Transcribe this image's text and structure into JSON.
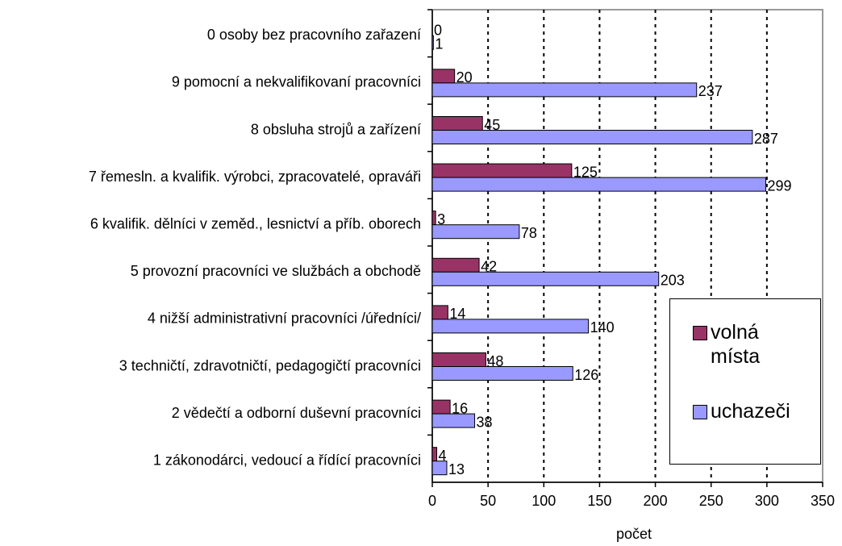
{
  "chart_data": {
    "type": "bar",
    "orientation": "horizontal",
    "categories": [
      "0 osoby bez pracovního zařazení",
      "9 pomocní a nekvalifikovaní pracovníci",
      "8 obsluha strojů  a zařízení",
      "7 řemesln. a kvalifik.  výrobci, zpracovatelé, opraváři",
      "6 kvalifik. dělníci v zeměd., lesnictví a příb. oborech",
      "5 provozní pracovníci ve službách a obchodě",
      "4 nižší administrativní pracovníci /úředníci/",
      "3 techničtí, zdravotničtí, pedagogičtí pracovníci",
      "2 vědečtí a odborní duševní pracovníci",
      "1 zákonodárci, vedoucí a řídící pracovníci"
    ],
    "series": [
      {
        "name": "volná místa",
        "color": "#993366",
        "values": [
          0,
          20,
          45,
          125,
          3,
          42,
          14,
          48,
          16,
          4
        ]
      },
      {
        "name": "uchazeči",
        "color": "#9999ff",
        "values": [
          1,
          237,
          287,
          299,
          78,
          203,
          140,
          126,
          38,
          13
        ]
      }
    ],
    "xlabel": "počet",
    "xlim": [
      0,
      350
    ],
    "xticks": [
      0,
      50,
      100,
      150,
      200,
      250,
      300,
      350
    ],
    "grid": true
  }
}
